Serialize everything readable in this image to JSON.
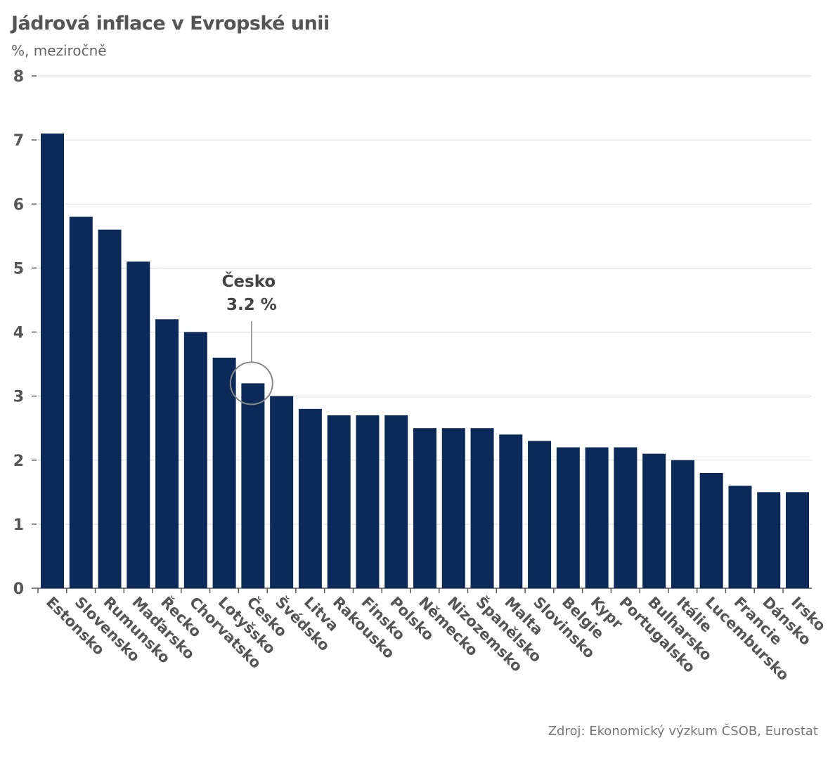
{
  "chart_data": {
    "type": "bar",
    "title": "Jádrová inflace v Evropské unii",
    "subtitle": "%, meziročně",
    "source": "Zdroj: Ekonomický výzkum ČSOB, Eurostat",
    "ylim": [
      0,
      8
    ],
    "yticks": [
      "0",
      "1",
      "2",
      "3",
      "4",
      "5",
      "6",
      "7",
      "8"
    ],
    "grid": true,
    "bar_color": "#0b2a5a",
    "categories": [
      "Estonsko",
      "Slovensko",
      "Rumunsko",
      "Maďarsko",
      "Řecko",
      "Chorvatsko",
      "Lotyšsko",
      "Česko",
      "Švédsko",
      "Litva",
      "Rakousko",
      "Finsko",
      "Polsko",
      "Německo",
      "Nizozemsko",
      "Španělsko",
      "Malta",
      "Slovinsko",
      "Belgie",
      "Kypr",
      "Portugalsko",
      "Bulharsko",
      "Itálie",
      "Lucembursko",
      "Francie",
      "Dánsko",
      "Irsko"
    ],
    "values": [
      7.1,
      5.8,
      5.6,
      5.1,
      4.2,
      4.0,
      3.6,
      3.2,
      3.0,
      2.8,
      2.7,
      2.7,
      2.7,
      2.5,
      2.5,
      2.5,
      2.4,
      2.3,
      2.2,
      2.2,
      2.2,
      2.1,
      2.0,
      1.8,
      1.6,
      1.5,
      1.5
    ],
    "annotation": {
      "category": "Česko",
      "line1": "Česko",
      "line2": "3.2 %"
    }
  }
}
